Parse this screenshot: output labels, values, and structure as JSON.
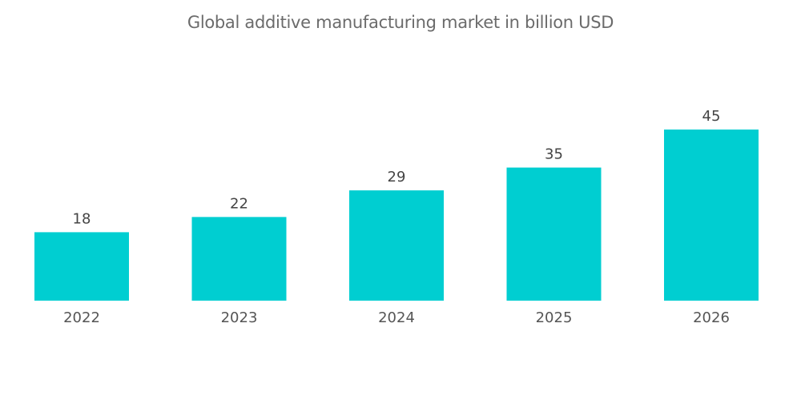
{
  "chart_data": {
    "type": "bar",
    "title": "Global additive manufacturing market in billion USD",
    "categories": [
      "2022",
      "2023",
      "2024",
      "2025",
      "2026"
    ],
    "values": [
      18,
      22,
      29,
      35,
      45
    ],
    "xlabel": "",
    "ylabel": "",
    "ylim": [
      0,
      45
    ],
    "grid": false,
    "legend": "none",
    "bar_color": "#00CED1"
  }
}
